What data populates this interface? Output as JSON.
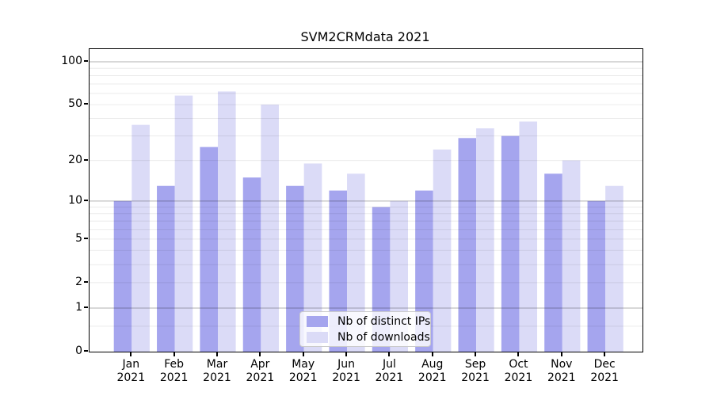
{
  "chart_data": {
    "type": "bar",
    "title": "SVM2CRMdata 2021",
    "categories": [
      "Jan",
      "Feb",
      "Mar",
      "Apr",
      "May",
      "Jun",
      "Jul",
      "Aug",
      "Sep",
      "Oct",
      "Nov",
      "Dec"
    ],
    "category_year": "2021",
    "series": [
      {
        "name": "Nb of distinct IPs",
        "color": "#a5a5ee",
        "values": [
          10,
          13,
          25,
          15,
          13,
          12,
          9,
          12,
          29,
          30,
          16,
          10
        ]
      },
      {
        "name": "Nb of downloads",
        "color": "#dbdbf7",
        "values": [
          36,
          58,
          62,
          50,
          19,
          16,
          10,
          24,
          34,
          38,
          20,
          13
        ]
      }
    ],
    "xlabel": "",
    "ylabel": "",
    "yscale": "symlog (log1p)",
    "ylim": [
      0,
      123
    ],
    "yticks": [
      0,
      1,
      2,
      5,
      10,
      20,
      50,
      100
    ],
    "major_gridlines": [
      1,
      10,
      100
    ],
    "minor_gridlines": [
      0.5,
      2,
      3,
      4,
      5,
      6,
      7,
      8,
      9,
      20,
      30,
      40,
      50,
      60,
      70,
      80,
      90
    ],
    "grid": "horizontal, on top of bars",
    "legend_position": "lower center"
  }
}
